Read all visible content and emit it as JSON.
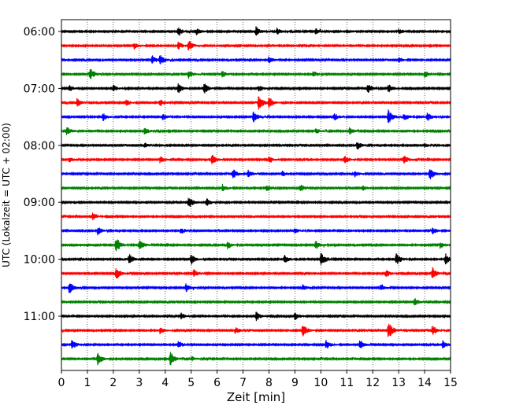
{
  "chart_data": {
    "type": "line",
    "title": "",
    "xlabel": "Zeit  [min]",
    "ylabel": "UTC (Lokalzeit = UTC + 02:00)",
    "xlim": [
      0,
      15
    ],
    "x_ticks": [
      "0",
      "1",
      "2",
      "3",
      "4",
      "5",
      "6",
      "7",
      "8",
      "9",
      "10",
      "11",
      "12",
      "13",
      "14",
      "15"
    ],
    "y_tick_labels": [
      "06:00",
      "07:00",
      "08:00",
      "09:00",
      "10:00",
      "11:00"
    ],
    "grid": "vertical dotted",
    "trace_interval_minutes": 15,
    "trace_count": 24,
    "color_cycle": [
      "#000000",
      "#ff0000",
      "#0000ff",
      "#008000"
    ],
    "traces": [
      {
        "start": "06:00",
        "color": "#000000",
        "events": [
          [
            4.5,
            0.6
          ],
          [
            5.2,
            0.5
          ],
          [
            7.5,
            0.7
          ],
          [
            8.3,
            0.5
          ],
          [
            9.8,
            0.4
          ],
          [
            13.0,
            0.4
          ]
        ]
      },
      {
        "start": "06:15",
        "color": "#ff0000",
        "events": [
          [
            2.8,
            0.5
          ],
          [
            4.5,
            0.6
          ],
          [
            4.9,
            0.8
          ]
        ]
      },
      {
        "start": "06:30",
        "color": "#0000ff",
        "events": [
          [
            3.5,
            0.6
          ],
          [
            3.8,
            0.7
          ],
          [
            8.0,
            0.6
          ],
          [
            13.0,
            0.4
          ]
        ]
      },
      {
        "start": "06:45",
        "color": "#008000",
        "events": [
          [
            1.1,
            1.0
          ],
          [
            4.9,
            0.6
          ],
          [
            6.2,
            0.5
          ],
          [
            9.7,
            0.5
          ],
          [
            14.0,
            0.5
          ]
        ]
      },
      {
        "start": "07:00",
        "color": "#000000",
        "events": [
          [
            0.3,
            0.5
          ],
          [
            2.0,
            0.5
          ],
          [
            4.5,
            0.7
          ],
          [
            5.5,
            0.8
          ],
          [
            7.6,
            0.5
          ],
          [
            11.8,
            0.7
          ],
          [
            12.6,
            0.6
          ]
        ]
      },
      {
        "start": "07:15",
        "color": "#ff0000",
        "events": [
          [
            0.6,
            0.6
          ],
          [
            2.5,
            0.5
          ],
          [
            3.8,
            0.6
          ],
          [
            7.6,
            1.2
          ],
          [
            8.0,
            0.8
          ]
        ]
      },
      {
        "start": "07:30",
        "color": "#0000ff",
        "events": [
          [
            1.6,
            0.6
          ],
          [
            3.9,
            0.5
          ],
          [
            7.4,
            0.9
          ],
          [
            10.5,
            0.6
          ],
          [
            12.6,
            1.0
          ],
          [
            13.2,
            0.6
          ],
          [
            14.1,
            0.6
          ]
        ]
      },
      {
        "start": "07:45",
        "color": "#008000",
        "events": [
          [
            0.2,
            0.7
          ],
          [
            3.2,
            0.5
          ],
          [
            9.8,
            0.4
          ],
          [
            11.1,
            0.5
          ]
        ]
      },
      {
        "start": "08:00",
        "color": "#000000",
        "events": [
          [
            3.2,
            0.4
          ],
          [
            11.4,
            0.6
          ],
          [
            14.0,
            0.3
          ]
        ]
      },
      {
        "start": "08:15",
        "color": "#ff0000",
        "events": [
          [
            0.3,
            0.4
          ],
          [
            3.8,
            0.5
          ],
          [
            5.8,
            0.8
          ],
          [
            8.0,
            0.5
          ],
          [
            10.9,
            0.7
          ],
          [
            13.2,
            0.6
          ]
        ]
      },
      {
        "start": "08:30",
        "color": "#0000ff",
        "events": [
          [
            6.6,
            0.8
          ],
          [
            7.2,
            0.5
          ],
          [
            8.5,
            0.5
          ],
          [
            11.3,
            0.5
          ],
          [
            14.2,
            0.9
          ]
        ]
      },
      {
        "start": "08:45",
        "color": "#008000",
        "events": [
          [
            6.2,
            0.5
          ],
          [
            7.9,
            0.5
          ],
          [
            9.2,
            0.6
          ],
          [
            11.6,
            0.4
          ]
        ]
      },
      {
        "start": "09:00",
        "color": "#000000",
        "events": [
          [
            4.9,
            1.0
          ],
          [
            5.6,
            0.6
          ]
        ]
      },
      {
        "start": "09:15",
        "color": "#ff0000",
        "events": [
          [
            1.2,
            0.5
          ]
        ]
      },
      {
        "start": "09:30",
        "color": "#0000ff",
        "events": [
          [
            1.4,
            0.6
          ],
          [
            4.6,
            0.5
          ],
          [
            9.0,
            0.4
          ],
          [
            14.3,
            0.5
          ]
        ]
      },
      {
        "start": "09:45",
        "color": "#008000",
        "events": [
          [
            2.1,
            1.2
          ],
          [
            3.0,
            0.8
          ],
          [
            6.4,
            0.5
          ],
          [
            9.8,
            0.6
          ],
          [
            14.6,
            0.5
          ]
        ]
      },
      {
        "start": "10:00",
        "color": "#000000",
        "events": [
          [
            2.6,
            0.8
          ],
          [
            5.0,
            0.8
          ],
          [
            8.6,
            0.6
          ],
          [
            10.0,
            1.0
          ],
          [
            12.9,
            0.9
          ],
          [
            14.8,
            0.8
          ]
        ]
      },
      {
        "start": "10:15",
        "color": "#ff0000",
        "events": [
          [
            2.1,
            1.0
          ],
          [
            5.1,
            0.6
          ],
          [
            12.5,
            0.6
          ],
          [
            14.3,
            0.9
          ]
        ]
      },
      {
        "start": "10:30",
        "color": "#0000ff",
        "events": [
          [
            0.3,
            0.9
          ],
          [
            4.8,
            0.6
          ],
          [
            9.3,
            0.4
          ],
          [
            12.3,
            0.5
          ]
        ]
      },
      {
        "start": "10:45",
        "color": "#008000",
        "events": [
          [
            13.6,
            0.6
          ]
        ]
      },
      {
        "start": "11:00",
        "color": "#000000",
        "events": [
          [
            4.6,
            0.6
          ],
          [
            7.5,
            0.7
          ],
          [
            9.0,
            0.5
          ]
        ]
      },
      {
        "start": "11:15",
        "color": "#ff0000",
        "events": [
          [
            3.8,
            0.5
          ],
          [
            6.7,
            0.5
          ],
          [
            9.3,
            1.0
          ],
          [
            12.6,
            1.3
          ],
          [
            14.3,
            0.7
          ]
        ]
      },
      {
        "start": "11:30",
        "color": "#0000ff",
        "events": [
          [
            0.4,
            0.7
          ],
          [
            4.5,
            0.6
          ],
          [
            10.2,
            0.7
          ],
          [
            11.5,
            0.7
          ],
          [
            14.7,
            0.7
          ]
        ]
      },
      {
        "start": "11:45",
        "color": "#008000",
        "events": [
          [
            1.4,
            0.9
          ],
          [
            4.2,
            1.0
          ],
          [
            5.0,
            0.4
          ]
        ]
      }
    ]
  }
}
